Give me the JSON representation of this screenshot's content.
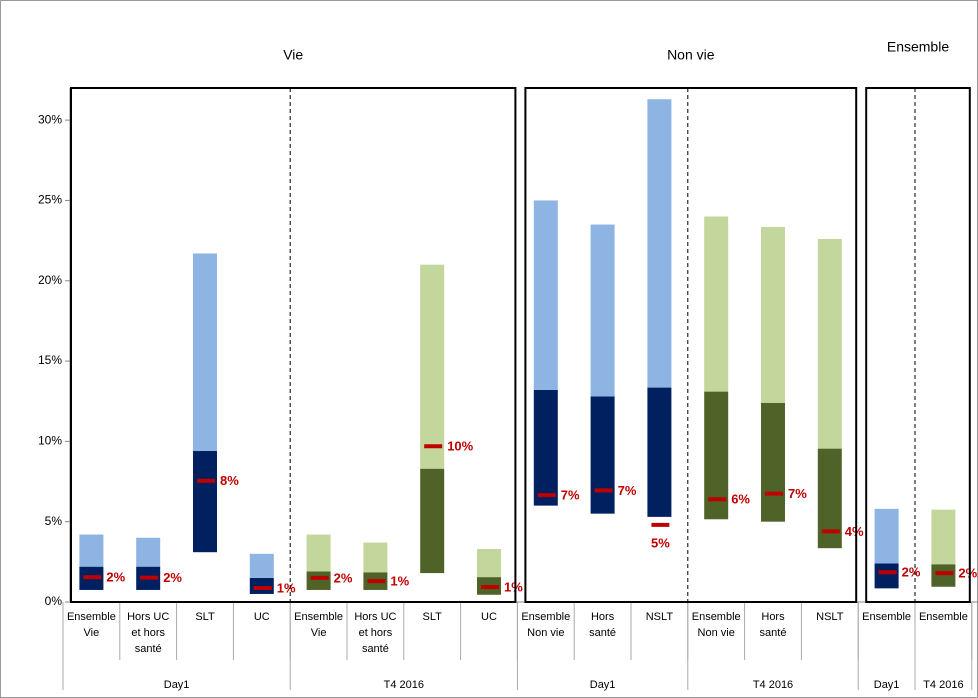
{
  "chart_data": {
    "type": "range_bar",
    "ylim": [
      0,
      32
    ],
    "yticks": [
      {
        "value": 0,
        "label": "0%"
      },
      {
        "value": 5,
        "label": "5%"
      },
      {
        "value": 10,
        "label": "10%"
      },
      {
        "value": 15,
        "label": "15%"
      },
      {
        "value": 20,
        "label": "20%"
      },
      {
        "value": 25,
        "label": "25%"
      },
      {
        "value": 30,
        "label": "30%"
      }
    ],
    "marker_color": "#c00000",
    "sections": [
      {
        "title": "Vie",
        "periods": [
          {
            "label": "Day1",
            "dark_color": "#002060",
            "light_color": "#8eb4e3",
            "bars": [
              {
                "label": [
                  "Ensemble",
                  "Vie"
                ],
                "low": 0.75,
                "mid": 2.2,
                "high": 4.2,
                "marker": 1.55,
                "marker_label": "2%"
              },
              {
                "label": [
                  "Hors UC",
                  "et hors",
                  "santé"
                ],
                "low": 0.75,
                "mid": 2.2,
                "high": 4.0,
                "marker": 1.52,
                "marker_label": "2%"
              },
              {
                "label": [
                  "SLT"
                ],
                "low": 3.1,
                "mid": 9.4,
                "high": 21.7,
                "marker": 7.55,
                "marker_label": "8%"
              },
              {
                "label": [
                  "UC"
                ],
                "low": 0.5,
                "mid": 1.5,
                "high": 3.0,
                "marker": 0.87,
                "marker_label": "1%"
              }
            ]
          },
          {
            "label": "T4 2016",
            "dark_color": "#4f6228",
            "light_color": "#c3d69b",
            "bars": [
              {
                "label": [
                  "Ensemble",
                  "Vie"
                ],
                "low": 0.75,
                "mid": 1.9,
                "high": 4.2,
                "marker": 1.5,
                "marker_label": "2%"
              },
              {
                "label": [
                  "Hors UC",
                  "et hors",
                  "santé"
                ],
                "low": 0.75,
                "mid": 1.85,
                "high": 3.7,
                "marker": 1.3,
                "marker_label": "1%"
              },
              {
                "label": [
                  "SLT"
                ],
                "low": 1.8,
                "mid": 8.3,
                "high": 21.0,
                "marker": 9.7,
                "marker_label": "10%"
              },
              {
                "label": [
                  "UC"
                ],
                "low": 0.45,
                "mid": 1.55,
                "high": 3.3,
                "marker": 0.93,
                "marker_label": "1%"
              }
            ]
          }
        ]
      },
      {
        "title": "Non vie",
        "periods": [
          {
            "label": "Day1",
            "dark_color": "#002060",
            "light_color": "#8eb4e3",
            "bars": [
              {
                "label": [
                  "Ensemble",
                  "Non vie"
                ],
                "low": 6.0,
                "mid": 13.2,
                "high": 25.0,
                "marker": 6.65,
                "marker_label": "7%"
              },
              {
                "label": [
                  "Hors",
                  "santé"
                ],
                "low": 5.5,
                "mid": 12.8,
                "high": 23.5,
                "marker": 6.95,
                "marker_label": "7%"
              },
              {
                "label": [
                  "NSLT"
                ],
                "low": 5.3,
                "mid": 13.35,
                "high": 31.3,
                "marker": 4.8,
                "marker_label": "5%"
              }
            ]
          },
          {
            "label": "T4 2016",
            "dark_color": "#4f6228",
            "light_color": "#c3d69b",
            "bars": [
              {
                "label": [
                  "Ensemble",
                  "Non vie"
                ],
                "low": 5.15,
                "mid": 13.1,
                "high": 24.0,
                "marker": 6.4,
                "marker_label": "6%"
              },
              {
                "label": [
                  "Hors",
                  "santé"
                ],
                "low": 5.0,
                "mid": 12.4,
                "high": 23.35,
                "marker": 6.75,
                "marker_label": "7%"
              },
              {
                "label": [
                  "NSLT"
                ],
                "low": 3.35,
                "mid": 9.55,
                "high": 22.6,
                "marker": 4.4,
                "marker_label": "4%"
              }
            ]
          }
        ]
      },
      {
        "title": "Ensemble",
        "periods": [
          {
            "label": "Day1",
            "dark_color": "#002060",
            "light_color": "#8eb4e3",
            "bars": [
              {
                "label": [
                  "Ensemble"
                ],
                "low": 0.85,
                "mid": 2.4,
                "high": 5.8,
                "marker": 1.85,
                "marker_label": "2%"
              }
            ]
          },
          {
            "label": "T4 2016",
            "dark_color": "#4f6228",
            "light_color": "#c3d69b",
            "bars": [
              {
                "label": [
                  "Ensemble"
                ],
                "low": 0.95,
                "mid": 2.35,
                "high": 5.75,
                "marker": 1.8,
                "marker_label": "2%"
              }
            ]
          }
        ]
      }
    ]
  }
}
